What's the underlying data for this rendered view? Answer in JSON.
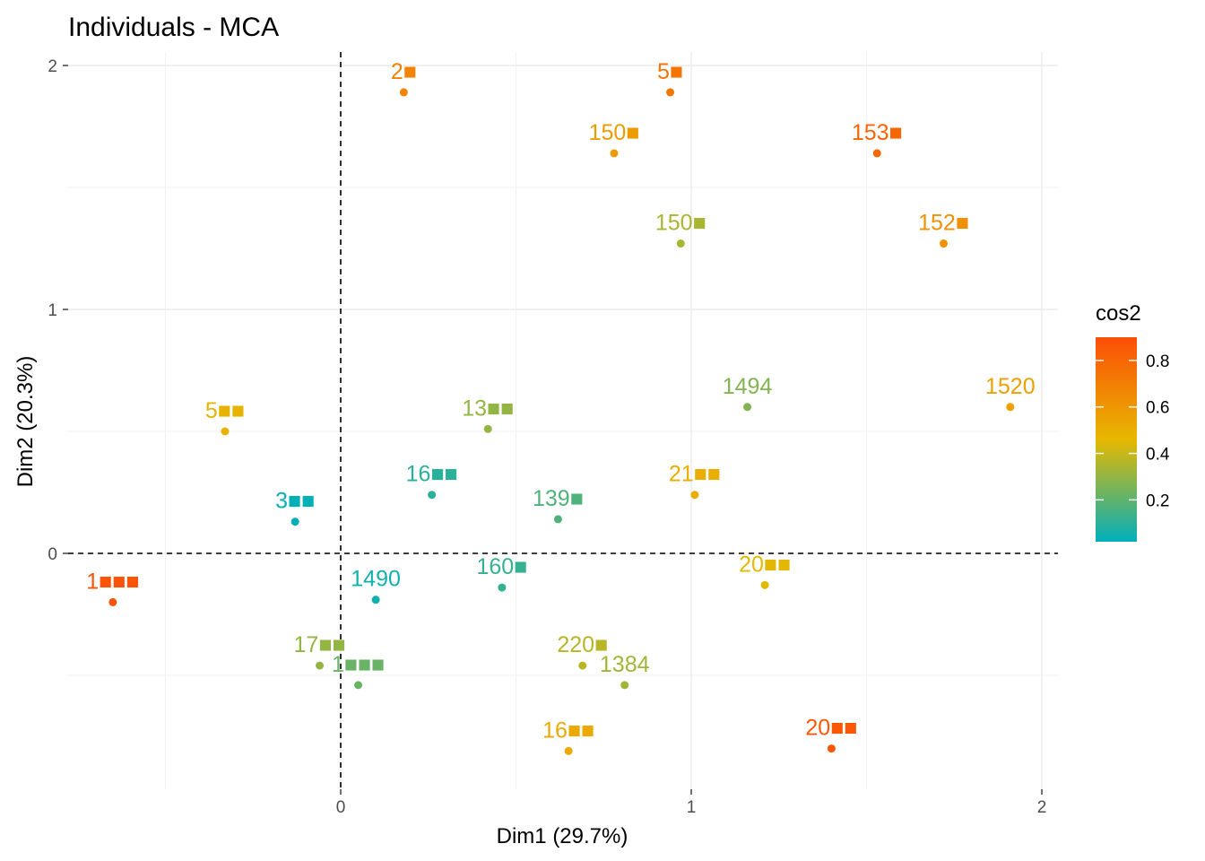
{
  "chart_data": {
    "type": "scatter",
    "title": "Individuals - MCA",
    "xlabel": "Dim1 (29.7%)",
    "ylabel": "Dim2 (20.3%)",
    "xlim": [
      -0.75,
      2.05
    ],
    "ylim": [
      -0.95,
      2.05
    ],
    "x_ticks": [
      0,
      1,
      2
    ],
    "y_ticks": [
      0,
      1,
      2
    ],
    "x_tick_labels": [
      "0",
      "1",
      "2"
    ],
    "y_tick_labels": [
      "0",
      "1",
      "2"
    ],
    "grid": true,
    "reference_lines": [
      {
        "axis": "x",
        "value": 0,
        "style": "dashed"
      },
      {
        "axis": "y",
        "value": 0,
        "style": "dashed"
      }
    ],
    "color_legend": {
      "title": "cos2",
      "ticks": [
        0.2,
        0.4,
        0.6,
        0.8
      ],
      "tick_labels": [
        "0.2",
        "0.4",
        "0.6",
        "0.8"
      ],
      "range": [
        0.02,
        0.9
      ],
      "colors": [
        "#00AFBB",
        "#E7B800",
        "#FC4E07"
      ],
      "placement": "right"
    },
    "points": [
      {
        "x": -0.65,
        "y": -0.2,
        "label": "1■■■",
        "cos2": 0.88
      },
      {
        "x": -0.33,
        "y": 0.5,
        "label": "5■■",
        "cos2": 0.48
      },
      {
        "x": -0.13,
        "y": 0.13,
        "label": "3■■",
        "cos2": 0.03
      },
      {
        "x": 0.18,
        "y": 1.89,
        "label": "2■",
        "cos2": 0.68
      },
      {
        "x": 0.94,
        "y": 1.89,
        "label": "5■",
        "cos2": 0.74
      },
      {
        "x": 0.78,
        "y": 1.64,
        "label": "150■",
        "cos2": 0.58
      },
      {
        "x": 1.53,
        "y": 1.64,
        "label": "153■",
        "cos2": 0.8
      },
      {
        "x": 0.97,
        "y": 1.27,
        "label": "150■",
        "cos2": 0.34
      },
      {
        "x": 1.72,
        "y": 1.27,
        "label": "152■",
        "cos2": 0.62
      },
      {
        "x": 1.16,
        "y": 0.6,
        "label": "1494",
        "cos2": 0.27
      },
      {
        "x": 1.91,
        "y": 0.6,
        "label": "1520",
        "cos2": 0.56
      },
      {
        "x": 0.42,
        "y": 0.51,
        "label": "13■■",
        "cos2": 0.3
      },
      {
        "x": 0.26,
        "y": 0.24,
        "label": "16■■",
        "cos2": 0.1
      },
      {
        "x": 1.01,
        "y": 0.24,
        "label": "21■■",
        "cos2": 0.5
      },
      {
        "x": 0.62,
        "y": 0.14,
        "label": "139■",
        "cos2": 0.17
      },
      {
        "x": 0.1,
        "y": -0.19,
        "label": "1490",
        "cos2": 0.05
      },
      {
        "x": 0.46,
        "y": -0.14,
        "label": "160■",
        "cos2": 0.12
      },
      {
        "x": 1.21,
        "y": -0.13,
        "label": "20■■",
        "cos2": 0.45
      },
      {
        "x": -0.06,
        "y": -0.46,
        "label": "17■■",
        "cos2": 0.3
      },
      {
        "x": 0.05,
        "y": -0.54,
        "label": "1■■■",
        "cos2": 0.22
      },
      {
        "x": 0.69,
        "y": -0.46,
        "label": "220■",
        "cos2": 0.37
      },
      {
        "x": 0.81,
        "y": -0.54,
        "label": "1384",
        "cos2": 0.33
      },
      {
        "x": 0.65,
        "y": -0.81,
        "label": "16■■",
        "cos2": 0.52
      },
      {
        "x": 1.4,
        "y": -0.8,
        "label": "20■■",
        "cos2": 0.86
      }
    ]
  }
}
